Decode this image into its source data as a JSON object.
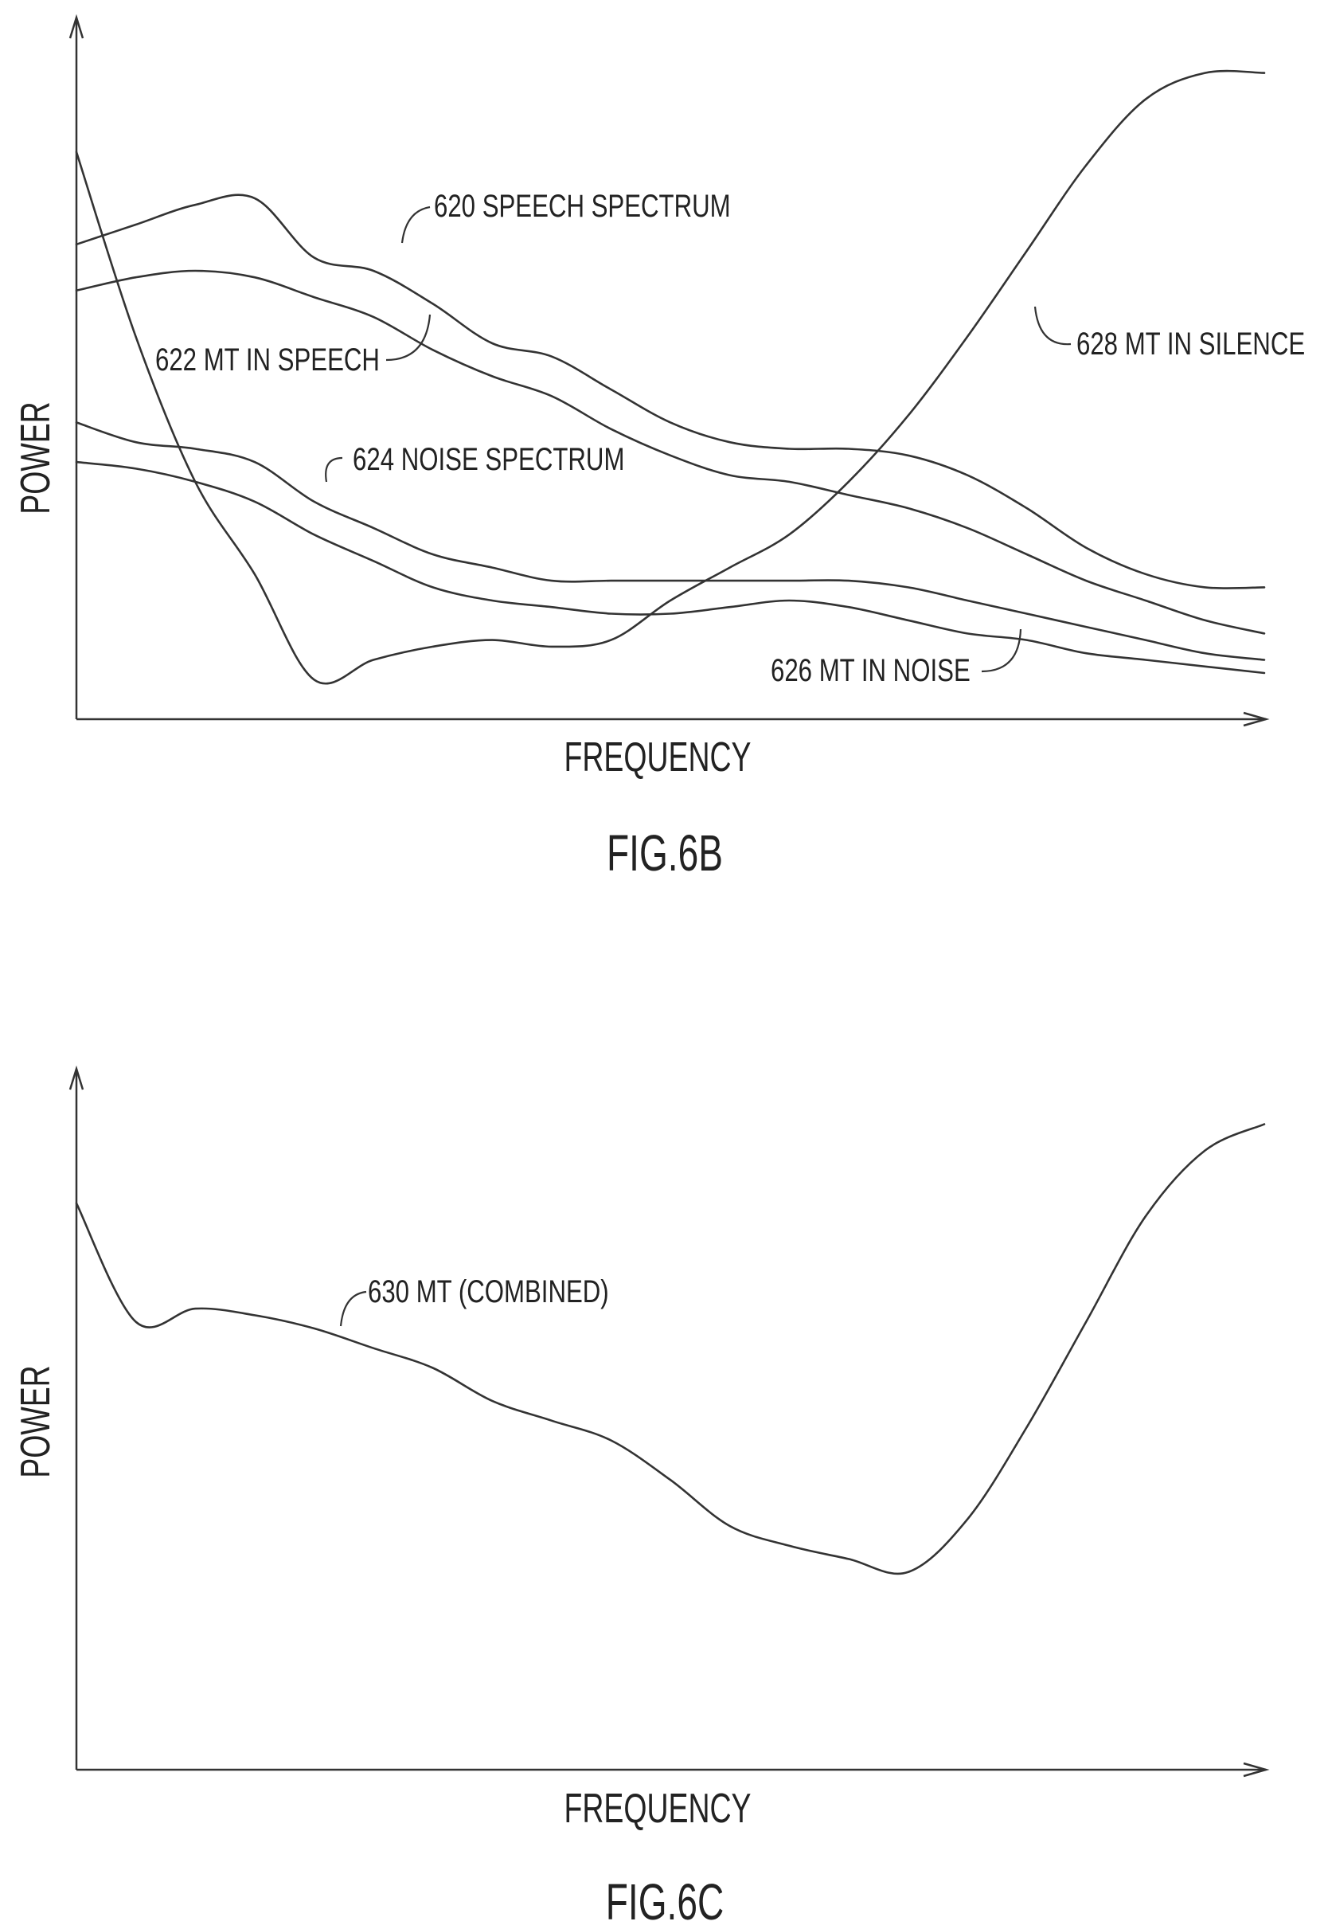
{
  "chart_data": [
    {
      "type": "line",
      "figure_label": "FIG.6B",
      "xlabel": "FREQUENCY",
      "ylabel": "POWER",
      "x": [
        0,
        5,
        10,
        15,
        20,
        25,
        30,
        35,
        40,
        45,
        50,
        55,
        60,
        65,
        70,
        75,
        80,
        85,
        90,
        95,
        100
      ],
      "ylim": [
        0,
        100
      ],
      "series": [
        {
          "name": "620 SPEECH SPECTRUM",
          "values": [
            72,
            75,
            78,
            79,
            70,
            68,
            63,
            57,
            55,
            50,
            45,
            42,
            41,
            41,
            40,
            37,
            32,
            26,
            22,
            20,
            20
          ]
        },
        {
          "name": "622 MT IN SPEECH",
          "values": [
            65,
            67,
            68,
            67,
            64,
            61,
            56,
            52,
            49,
            44,
            40,
            37,
            36,
            34,
            32,
            29,
            25,
            21,
            18,
            15,
            13
          ]
        },
        {
          "name": "624 NOISE SPECTRUM",
          "values": [
            45,
            42,
            41,
            39,
            33,
            29,
            25,
            23,
            21,
            21,
            21,
            21,
            21,
            21,
            20,
            18,
            16,
            14,
            12,
            10,
            9
          ]
        },
        {
          "name": "626 MT IN NOISE",
          "values": [
            39,
            38,
            36,
            33,
            28,
            24,
            20,
            18,
            17,
            16,
            16,
            17,
            18,
            17,
            15,
            13,
            12,
            10,
            9,
            8,
            7
          ]
        },
        {
          "name": "628 MT IN SILENCE",
          "values": [
            86,
            58,
            36,
            22,
            6,
            9,
            11,
            12,
            11,
            12,
            18,
            23,
            28,
            36,
            46,
            58,
            71,
            84,
            94,
            98,
            98
          ]
        }
      ]
    },
    {
      "type": "line",
      "figure_label": "FIG.6C",
      "xlabel": "FREQUENCY",
      "ylabel": "POWER",
      "x": [
        0,
        5,
        10,
        15,
        20,
        25,
        30,
        35,
        40,
        45,
        50,
        55,
        60,
        65,
        70,
        75,
        80,
        85,
        90,
        95,
        100
      ],
      "ylim": [
        0,
        100
      ],
      "series": [
        {
          "name": "630 MT (COMBINED)",
          "values": [
            86,
            68,
            70,
            69,
            67,
            64,
            61,
            56,
            53,
            50,
            44,
            37,
            34,
            32,
            30,
            38,
            52,
            68,
            84,
            94,
            98
          ]
        }
      ]
    }
  ]
}
